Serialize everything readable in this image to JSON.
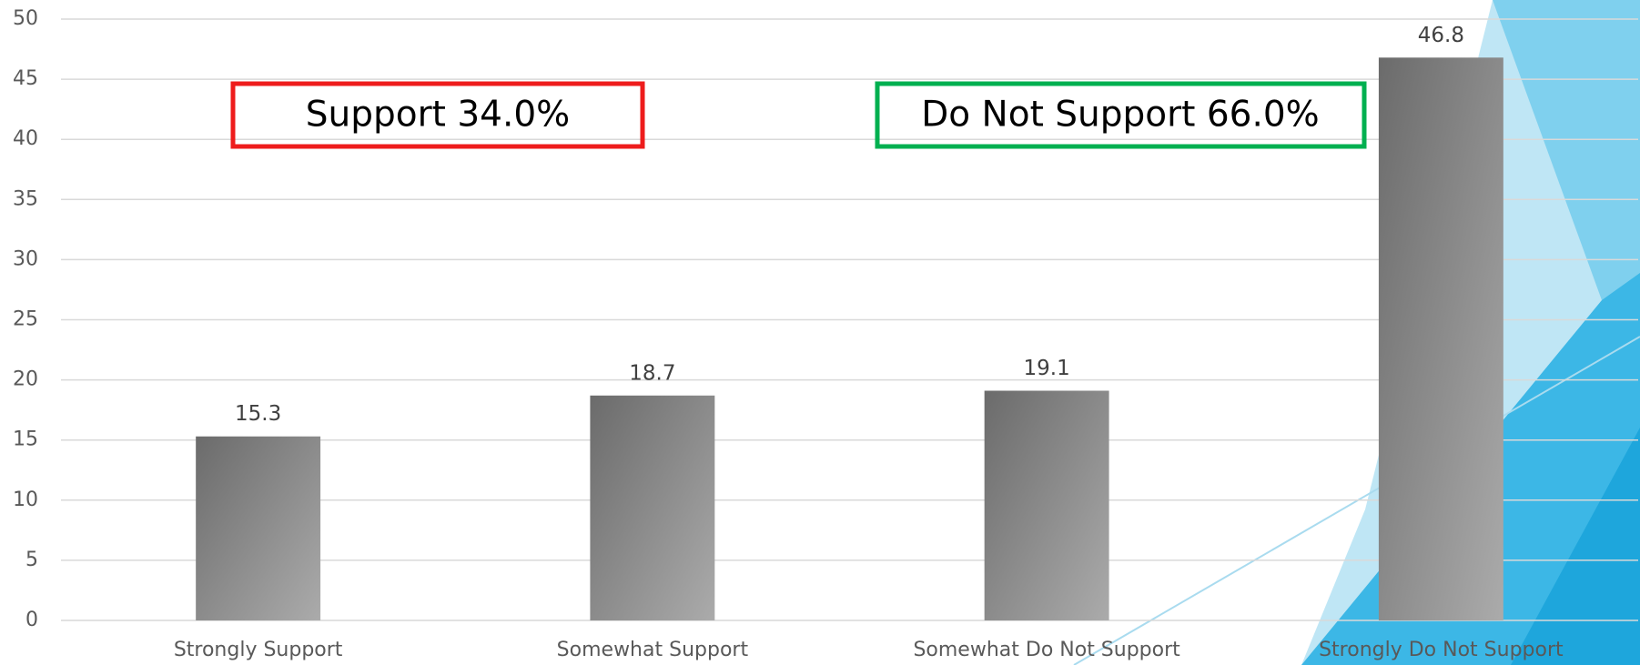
{
  "chart_data": {
    "type": "bar",
    "categories": [
      "Strongly Support",
      "Somewhat Support",
      "Somewhat Do Not Support",
      "Strongly Do Not Support"
    ],
    "values": [
      15.3,
      18.7,
      19.1,
      46.8
    ],
    "ylim": [
      0,
      50
    ],
    "yticks": [
      0,
      5,
      10,
      15,
      20,
      25,
      30,
      35,
      40,
      45,
      50
    ],
    "grid": true,
    "annotations": [
      {
        "text": "Support 34.0%",
        "color": "#ee1c1c"
      },
      {
        "text": "Do Not Support 66.0%",
        "color": "#00b050"
      }
    ]
  }
}
